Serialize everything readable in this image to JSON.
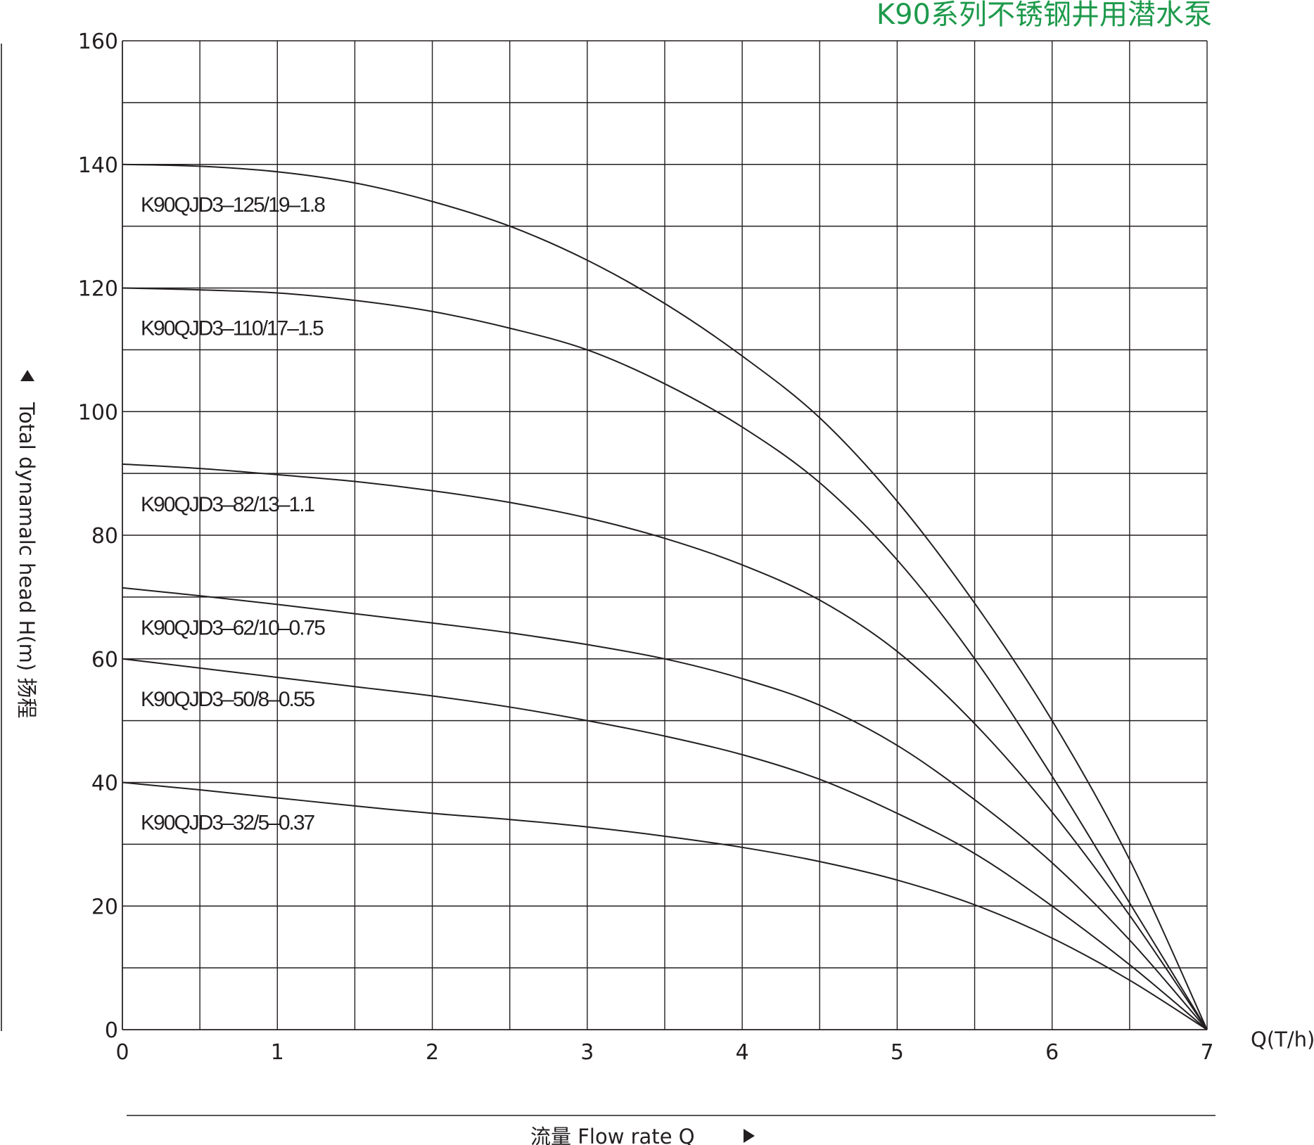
{
  "colors": {
    "title": "#1e9a4c",
    "ink": "#231f20",
    "background": "#ffffff"
  },
  "chart_data": {
    "type": "line",
    "title": "K90系列不锈钢井用潜水泵",
    "xlabel": "流量  Flow rate Q",
    "ylabel": "Total dynamalc head H(m) 扬程",
    "x_unit_label": "Q(T/h)",
    "xlim": [
      0,
      7
    ],
    "ylim": [
      0,
      160
    ],
    "x_ticks": [
      "0",
      "1",
      "2",
      "3",
      "4",
      "5",
      "6",
      "7"
    ],
    "y_ticks": [
      "0",
      "20",
      "40",
      "60",
      "80",
      "100",
      "120",
      "140",
      "160"
    ],
    "grid": true,
    "x_grid_step": 0.5,
    "y_grid_step": 10,
    "series": [
      {
        "name": "K90QJD3–125/19–1.8",
        "x": [
          0,
          0.5,
          1,
          1.5,
          2,
          2.5,
          3,
          3.5,
          4,
          4.5,
          5,
          5.5,
          6,
          6.5,
          7
        ],
        "y": [
          140,
          139.7,
          138.8,
          137,
          134,
          130,
          124.5,
          117.5,
          109,
          99,
          85.5,
          69,
          50,
          27.5,
          0
        ]
      },
      {
        "name": "K90QJD3–110/17–1.5",
        "x": [
          0,
          0.5,
          1,
          1.5,
          2,
          2.5,
          3,
          3.5,
          4,
          4.5,
          5,
          5.5,
          6,
          6.5,
          7
        ],
        "y": [
          120,
          119.7,
          119.2,
          118,
          116.2,
          113.5,
          110,
          104.5,
          97.5,
          88.5,
          76,
          60,
          41,
          20.5,
          0
        ]
      },
      {
        "name": "K90QJD3–82/13–1.1",
        "x": [
          0,
          0.5,
          1,
          1.5,
          2,
          2.5,
          3,
          3.5,
          4,
          4.5,
          5,
          5.5,
          6,
          6.5,
          7
        ],
        "y": [
          91.5,
          90.8,
          89.8,
          88.7,
          87.2,
          85.3,
          82.8,
          79.5,
          75.2,
          69.5,
          61.2,
          49.5,
          35.2,
          18.5,
          0
        ]
      },
      {
        "name": "K90QJD3–62/10–0.75",
        "x": [
          0,
          0.5,
          1,
          1.5,
          2,
          2.5,
          3,
          3.5,
          4,
          4.5,
          5,
          5.5,
          6,
          6.5,
          7
        ],
        "y": [
          71.5,
          70.2,
          68.8,
          67.3,
          65.8,
          64.2,
          62.3,
          60,
          56.8,
          52.5,
          46,
          37.2,
          27,
          14.5,
          0
        ]
      },
      {
        "name": "K90QJD3–50/8–0.55",
        "x": [
          0,
          0.5,
          1,
          1.5,
          2,
          2.5,
          3,
          3.5,
          4,
          4.5,
          5,
          5.5,
          6,
          6.5,
          7
        ],
        "y": [
          60,
          58.5,
          57,
          55.5,
          54,
          52.2,
          50,
          47.5,
          44.5,
          40.5,
          35,
          28.5,
          20,
          10.5,
          0
        ]
      },
      {
        "name": "K90QJD3–32/5–0.37",
        "x": [
          0,
          0.5,
          1,
          1.5,
          2,
          2.5,
          3,
          3.5,
          4,
          4.5,
          5,
          5.5,
          6,
          6.5,
          7
        ],
        "y": [
          40,
          38.8,
          37.5,
          36.2,
          35,
          34,
          32.8,
          31.3,
          29.5,
          27.2,
          24.2,
          20.2,
          14.8,
          8,
          0
        ]
      }
    ]
  }
}
